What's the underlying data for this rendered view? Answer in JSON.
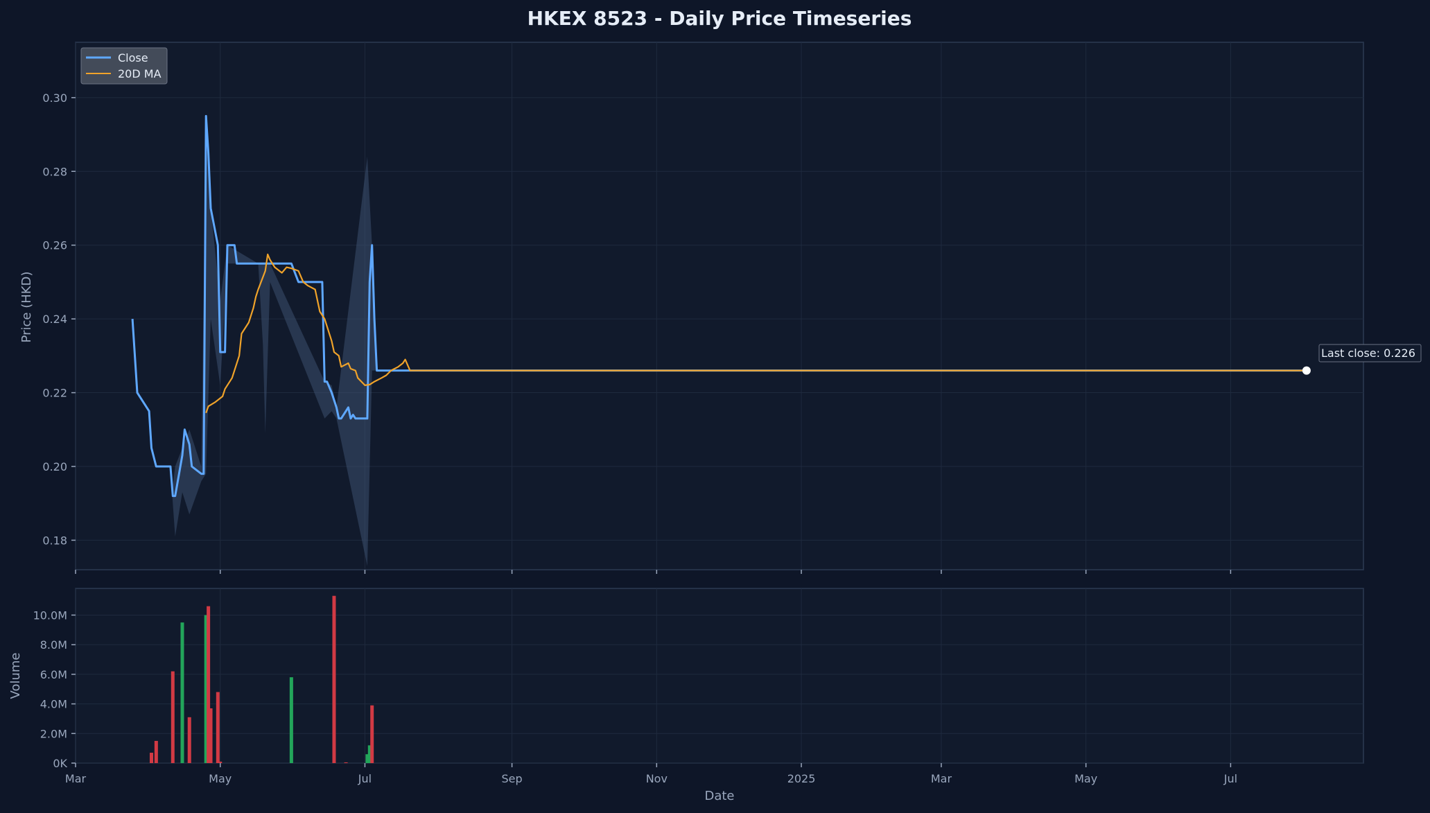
{
  "chart_data": {
    "type": "line",
    "title": "HKEX 8523 - Daily Price Timeseries",
    "xlabel": "Date",
    "ylabel_price": "Price (HKD)",
    "ylabel_volume": "Volume",
    "x_range": [
      "2024-03-01",
      "2025-08-26"
    ],
    "x_ticks": [
      {
        "date": "2024-03-01",
        "label": "Mar"
      },
      {
        "date": "2024-05-01",
        "label": "May"
      },
      {
        "date": "2024-07-01",
        "label": "Jul"
      },
      {
        "date": "2024-09-01",
        "label": "Sep"
      },
      {
        "date": "2024-11-01",
        "label": "Nov"
      },
      {
        "date": "2025-01-01",
        "label": "2025"
      },
      {
        "date": "2025-03-01",
        "label": "Mar"
      },
      {
        "date": "2025-05-01",
        "label": "May"
      },
      {
        "date": "2025-07-01",
        "label": "Jul"
      }
    ],
    "price_ylim": [
      0.172,
      0.315
    ],
    "price_ticks": [
      "0.18",
      "0.20",
      "0.22",
      "0.24",
      "0.26",
      "0.28",
      "0.30"
    ],
    "volume_ylim": [
      0,
      11800000
    ],
    "volume_ticks": [
      {
        "value": 0,
        "label": "0K"
      },
      {
        "value": 2000000,
        "label": "2.0M"
      },
      {
        "value": 4000000,
        "label": "4.0M"
      },
      {
        "value": 6000000,
        "label": "6.0M"
      },
      {
        "value": 8000000,
        "label": "8.0M"
      },
      {
        "value": 10000000,
        "label": "10.0M"
      }
    ],
    "grid": true,
    "legend_position": "top-left",
    "colors": {
      "close": "#5fa8ff",
      "ma": "#f0a32a",
      "volume_up": "#23a55a",
      "volume_down": "#d23a44",
      "band": "#3c5070",
      "last_point": "#ffffff"
    },
    "series": [
      {
        "name": "Close",
        "points": [
          [
            "2024-03-25",
            0.24
          ],
          [
            "2024-03-27",
            0.22
          ],
          [
            "2024-04-01",
            0.215
          ],
          [
            "2024-04-02",
            0.205
          ],
          [
            "2024-04-04",
            0.2
          ],
          [
            "2024-04-10",
            0.2
          ],
          [
            "2024-04-11",
            0.192
          ],
          [
            "2024-04-12",
            0.192
          ],
          [
            "2024-04-15",
            0.203
          ],
          [
            "2024-04-16",
            0.21
          ],
          [
            "2024-04-18",
            0.206
          ],
          [
            "2024-04-19",
            0.2
          ],
          [
            "2024-04-23",
            0.198
          ],
          [
            "2024-04-24",
            0.198
          ],
          [
            "2024-04-25",
            0.295
          ],
          [
            "2024-04-26",
            0.285
          ],
          [
            "2024-04-27",
            0.27
          ],
          [
            "2024-04-30",
            0.26
          ],
          [
            "2024-05-01",
            0.231
          ],
          [
            "2024-05-03",
            0.231
          ],
          [
            "2024-05-04",
            0.26
          ],
          [
            "2024-05-07",
            0.26
          ],
          [
            "2024-05-08",
            0.255
          ],
          [
            "2024-05-20",
            0.255
          ],
          [
            "2024-05-31",
            0.255
          ],
          [
            "2024-06-03",
            0.25
          ],
          [
            "2024-06-13",
            0.25
          ],
          [
            "2024-06-14",
            0.223
          ],
          [
            "2024-06-15",
            0.223
          ],
          [
            "2024-06-17",
            0.22
          ],
          [
            "2024-06-19",
            0.216
          ],
          [
            "2024-06-20",
            0.213
          ],
          [
            "2024-06-21",
            0.213
          ],
          [
            "2024-06-24",
            0.216
          ],
          [
            "2024-06-25",
            0.213
          ],
          [
            "2024-06-26",
            0.214
          ],
          [
            "2024-06-27",
            0.213
          ],
          [
            "2024-06-28",
            0.213
          ],
          [
            "2024-07-02",
            0.213
          ],
          [
            "2024-07-03",
            0.25
          ],
          [
            "2024-07-04",
            0.26
          ],
          [
            "2024-07-05",
            0.24
          ],
          [
            "2024-07-06",
            0.226
          ],
          [
            "2024-07-26",
            0.226
          ],
          [
            "2025-08-02",
            0.226
          ]
        ]
      },
      {
        "name": "20D MA",
        "points": [
          [
            "2024-04-25",
            0.2145
          ],
          [
            "2024-04-26",
            0.2163
          ],
          [
            "2024-04-29",
            0.2175
          ],
          [
            "2024-05-02",
            0.219
          ],
          [
            "2024-05-03",
            0.221
          ],
          [
            "2024-05-06",
            0.224
          ],
          [
            "2024-05-09",
            0.23
          ],
          [
            "2024-05-10",
            0.236
          ],
          [
            "2024-05-13",
            0.239
          ],
          [
            "2024-05-14",
            0.241
          ],
          [
            "2024-05-15",
            0.243
          ],
          [
            "2024-05-16",
            0.246
          ],
          [
            "2024-05-17",
            0.248
          ],
          [
            "2024-05-20",
            0.253
          ],
          [
            "2024-05-21",
            0.2575
          ],
          [
            "2024-05-22",
            0.256
          ],
          [
            "2024-05-24",
            0.254
          ],
          [
            "2024-05-27",
            0.2525
          ],
          [
            "2024-05-29",
            0.254
          ],
          [
            "2024-05-31",
            0.2537
          ],
          [
            "2024-06-03",
            0.253
          ],
          [
            "2024-06-05",
            0.25
          ],
          [
            "2024-06-07",
            0.249
          ],
          [
            "2024-06-10",
            0.248
          ],
          [
            "2024-06-12",
            0.242
          ],
          [
            "2024-06-14",
            0.24
          ],
          [
            "2024-06-17",
            0.234
          ],
          [
            "2024-06-18",
            0.231
          ],
          [
            "2024-06-20",
            0.23
          ],
          [
            "2024-06-21",
            0.227
          ],
          [
            "2024-06-24",
            0.228
          ],
          [
            "2024-06-25",
            0.2265
          ],
          [
            "2024-06-27",
            0.226
          ],
          [
            "2024-06-28",
            0.224
          ],
          [
            "2024-07-01",
            0.222
          ],
          [
            "2024-07-03",
            0.2222
          ],
          [
            "2024-07-05",
            0.223
          ],
          [
            "2024-07-08",
            0.224
          ],
          [
            "2024-07-10",
            0.2247
          ],
          [
            "2024-07-12",
            0.226
          ],
          [
            "2024-07-15",
            0.227
          ],
          [
            "2024-07-17",
            0.228
          ],
          [
            "2024-07-18",
            0.229
          ],
          [
            "2024-07-20",
            0.226
          ],
          [
            "2025-08-02",
            0.226
          ]
        ]
      }
    ],
    "volume": [
      {
        "date": "2024-04-02",
        "value": 700000,
        "dir": "down"
      },
      {
        "date": "2024-04-04",
        "value": 1500000,
        "dir": "down"
      },
      {
        "date": "2024-04-11",
        "value": 6200000,
        "dir": "down"
      },
      {
        "date": "2024-04-15",
        "value": 9500000,
        "dir": "up"
      },
      {
        "date": "2024-04-18",
        "value": 3100000,
        "dir": "down"
      },
      {
        "date": "2024-04-25",
        "value": 10000000,
        "dir": "up"
      },
      {
        "date": "2024-04-26",
        "value": 10600000,
        "dir": "down"
      },
      {
        "date": "2024-04-27",
        "value": 3700000,
        "dir": "down"
      },
      {
        "date": "2024-04-30",
        "value": 4800000,
        "dir": "down"
      },
      {
        "date": "2024-05-01",
        "value": 100000,
        "dir": "down"
      },
      {
        "date": "2024-05-31",
        "value": 5800000,
        "dir": "up"
      },
      {
        "date": "2024-06-18",
        "value": 11300000,
        "dir": "down"
      },
      {
        "date": "2024-06-23",
        "value": 50000,
        "dir": "down"
      },
      {
        "date": "2024-07-02",
        "value": 600000,
        "dir": "up"
      },
      {
        "date": "2024-07-03",
        "value": 1200000,
        "dir": "up"
      },
      {
        "date": "2024-07-04",
        "value": 3900000,
        "dir": "down"
      }
    ],
    "range_band": [
      [
        "2024-04-10",
        0.2,
        0.2
      ],
      [
        "2024-04-11",
        0.19,
        0.195
      ],
      [
        "2024-04-12",
        0.181,
        0.2
      ],
      [
        "2024-04-15",
        0.193,
        0.205
      ],
      [
        "2024-04-18",
        0.187,
        0.21
      ],
      [
        "2024-04-23",
        0.196,
        0.2
      ],
      [
        "2024-04-25",
        0.198,
        0.295
      ],
      [
        "2024-04-27",
        0.24,
        0.27
      ],
      [
        "2024-05-01",
        0.222,
        0.245
      ],
      [
        "2024-05-04",
        0.255,
        0.26
      ],
      [
        "2024-05-17",
        0.255,
        0.255
      ],
      [
        "2024-05-19",
        0.233,
        0.255
      ],
      [
        "2024-05-20",
        0.209,
        0.255
      ],
      [
        "2024-05-22",
        0.25,
        0.255
      ],
      [
        "2024-06-14",
        0.213,
        0.223
      ],
      [
        "2024-06-17",
        0.215,
        0.222
      ],
      [
        "2024-06-19",
        0.213,
        0.216
      ],
      [
        "2024-07-02",
        0.173,
        0.284
      ],
      [
        "2024-07-04",
        0.226,
        0.26
      ],
      [
        "2024-07-06",
        0.226,
        0.226
      ]
    ],
    "annotation": "Last close: 0.226",
    "last_point": {
      "date": "2025-08-02",
      "value": 0.226
    }
  }
}
